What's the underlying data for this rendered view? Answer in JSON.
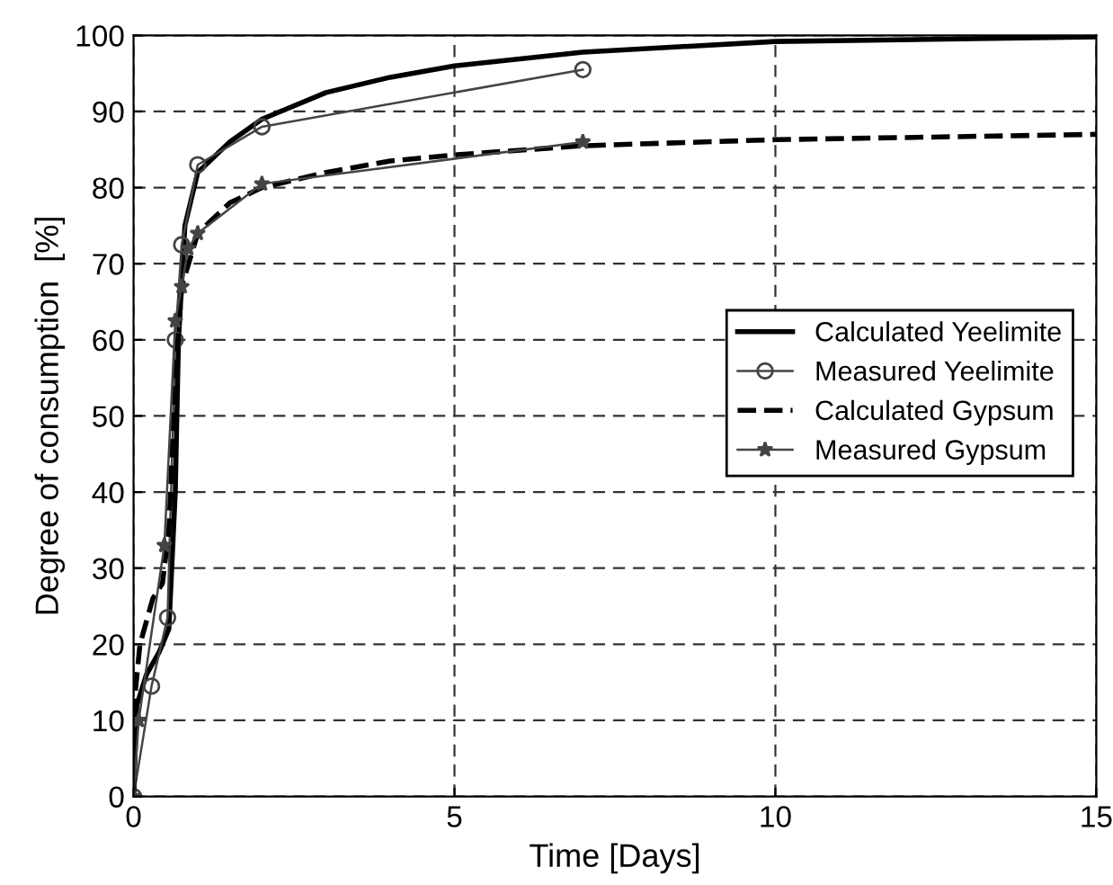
{
  "chart_data": {
    "type": "line",
    "xlabel": "Time [Days]",
    "ylabel": "Degree of consumption  [%]",
    "xlim": [
      0,
      15
    ],
    "ylim": [
      0,
      100
    ],
    "xticks": [
      0,
      5,
      10,
      15
    ],
    "yticks": [
      0,
      10,
      20,
      30,
      40,
      50,
      60,
      70,
      80,
      90,
      100
    ],
    "grid": true,
    "legend": "right",
    "series": [
      {
        "name": "Calculated Yeelimite",
        "color": "#000000",
        "line_style": "solid",
        "marker": "none",
        "x": [
          0,
          0.05,
          0.2,
          0.4,
          0.55,
          0.65,
          0.7,
          0.8,
          1,
          1.5,
          2,
          3,
          4,
          5,
          7,
          10,
          15
        ],
        "values": [
          0,
          12,
          16,
          19,
          22,
          40,
          60,
          75,
          82,
          86,
          89,
          92.5,
          94.5,
          96,
          97.8,
          99.2,
          99.8
        ]
      },
      {
        "name": "Measured Yeelimite",
        "color": "#444444",
        "line_style": "solid",
        "marker": "circle",
        "x": [
          0,
          0.28,
          0.53,
          0.65,
          0.75,
          1,
          2,
          7
        ],
        "values": [
          0,
          14.5,
          23.5,
          60,
          72.5,
          83,
          88,
          95.5
        ]
      },
      {
        "name": "Calculated Gypsum",
        "color": "#000000",
        "line_style": "dashed",
        "marker": "none",
        "x": [
          0,
          0.03,
          0.1,
          0.3,
          0.45,
          0.55,
          0.65,
          0.75,
          1,
          1.5,
          2,
          3,
          4,
          5,
          7,
          10,
          15
        ],
        "values": [
          0,
          14,
          20,
          26,
          28,
          35,
          55,
          67,
          74,
          78,
          80,
          82,
          83.5,
          84.3,
          85.5,
          86.3,
          87
        ]
      },
      {
        "name": "Measured Gypsum",
        "color": "#444444",
        "line_style": "solid",
        "marker": "star",
        "x": [
          0,
          0.08,
          0.48,
          0.65,
          0.75,
          0.85,
          1,
          2,
          7
        ],
        "values": [
          0,
          10,
          33,
          62.5,
          67,
          72,
          74,
          80.5,
          86
        ]
      }
    ]
  }
}
